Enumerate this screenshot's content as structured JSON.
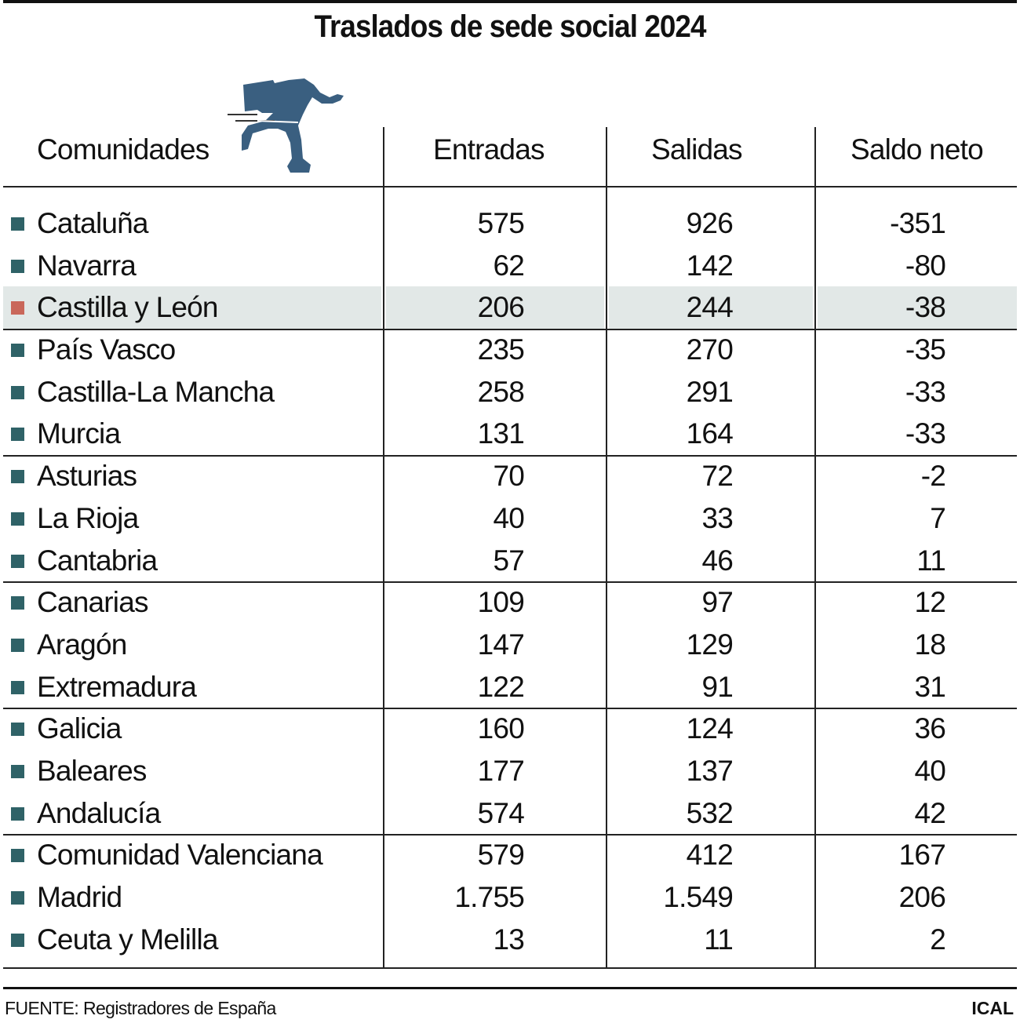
{
  "title": "Traslados de sede social 2024",
  "headers": [
    "Comunidades",
    "Entradas",
    "Salidas",
    "Saldo neto"
  ],
  "colors": {
    "marker": "#2f6267",
    "highlight_marker": "#c9675a",
    "highlight_bg": "#e2e8e7",
    "icon": "#3a5f80"
  },
  "icon": "running-man-with-briefcase-icon",
  "rows": [
    {
      "name": "Cataluña",
      "entradas": "575",
      "salidas": "926",
      "saldo": "-351"
    },
    {
      "name": "Navarra",
      "entradas": "62",
      "salidas": "142",
      "saldo": "-80"
    },
    {
      "name": "Castilla y León",
      "entradas": "206",
      "salidas": "244",
      "saldo": "-38",
      "highlight": true
    },
    {
      "name": "País Vasco",
      "entradas": "235",
      "salidas": "270",
      "saldo": "-35"
    },
    {
      "name": "Castilla-La Mancha",
      "entradas": "258",
      "salidas": "291",
      "saldo": "-33"
    },
    {
      "name": "Murcia",
      "entradas": "131",
      "salidas": "164",
      "saldo": "-33"
    },
    {
      "name": "Asturias",
      "entradas": "70",
      "salidas": "72",
      "saldo": "-2"
    },
    {
      "name": "La Rioja",
      "entradas": "40",
      "salidas": "33",
      "saldo": "7"
    },
    {
      "name": "Cantabria",
      "entradas": "57",
      "salidas": "46",
      "saldo": "11"
    },
    {
      "name": "Canarias",
      "entradas": "109",
      "salidas": "97",
      "saldo": "12"
    },
    {
      "name": "Aragón",
      "entradas": "147",
      "salidas": "129",
      "saldo": "18"
    },
    {
      "name": "Extremadura",
      "entradas": "122",
      "salidas": "91",
      "saldo": "31"
    },
    {
      "name": "Galicia",
      "entradas": "160",
      "salidas": "124",
      "saldo": "36"
    },
    {
      "name": "Baleares",
      "entradas": "177",
      "salidas": "137",
      "saldo": "40"
    },
    {
      "name": "Andalucía",
      "entradas": "574",
      "salidas": "532",
      "saldo": "42"
    },
    {
      "name": "Comunidad Valenciana",
      "entradas": "579",
      "salidas": "412",
      "saldo": "167"
    },
    {
      "name": "Madrid",
      "entradas": "1.755",
      "salidas": "1.549",
      "saldo": "206"
    },
    {
      "name": "Ceuta y Melilla",
      "entradas": "13",
      "salidas": "11",
      "saldo": "2"
    }
  ],
  "footer": {
    "source": "FUENTE: Registradores de España",
    "brand": "ICAL"
  },
  "chart_data": {
    "type": "table",
    "title": "Traslados de sede social 2024",
    "columns": [
      "Comunidades",
      "Entradas",
      "Salidas",
      "Saldo neto"
    ],
    "rows": [
      [
        "Cataluña",
        575,
        926,
        -351
      ],
      [
        "Navarra",
        62,
        142,
        -80
      ],
      [
        "Castilla y León",
        206,
        244,
        -38
      ],
      [
        "País Vasco",
        235,
        270,
        -35
      ],
      [
        "Castilla-La Mancha",
        258,
        291,
        -33
      ],
      [
        "Murcia",
        131,
        164,
        -33
      ],
      [
        "Asturias",
        70,
        72,
        -2
      ],
      [
        "La Rioja",
        40,
        33,
        7
      ],
      [
        "Cantabria",
        57,
        46,
        11
      ],
      [
        "Canarias",
        109,
        97,
        12
      ],
      [
        "Aragón",
        147,
        129,
        18
      ],
      [
        "Extremadura",
        122,
        91,
        31
      ],
      [
        "Galicia",
        160,
        124,
        36
      ],
      [
        "Baleares",
        177,
        137,
        40
      ],
      [
        "Andalucía",
        574,
        532,
        42
      ],
      [
        "Comunidad Valenciana",
        579,
        412,
        167
      ],
      [
        "Madrid",
        1755,
        1549,
        206
      ],
      [
        "Ceuta y Melilla",
        13,
        11,
        2
      ]
    ],
    "highlighted_row": "Castilla y León",
    "source": "FUENTE: Registradores de España"
  }
}
